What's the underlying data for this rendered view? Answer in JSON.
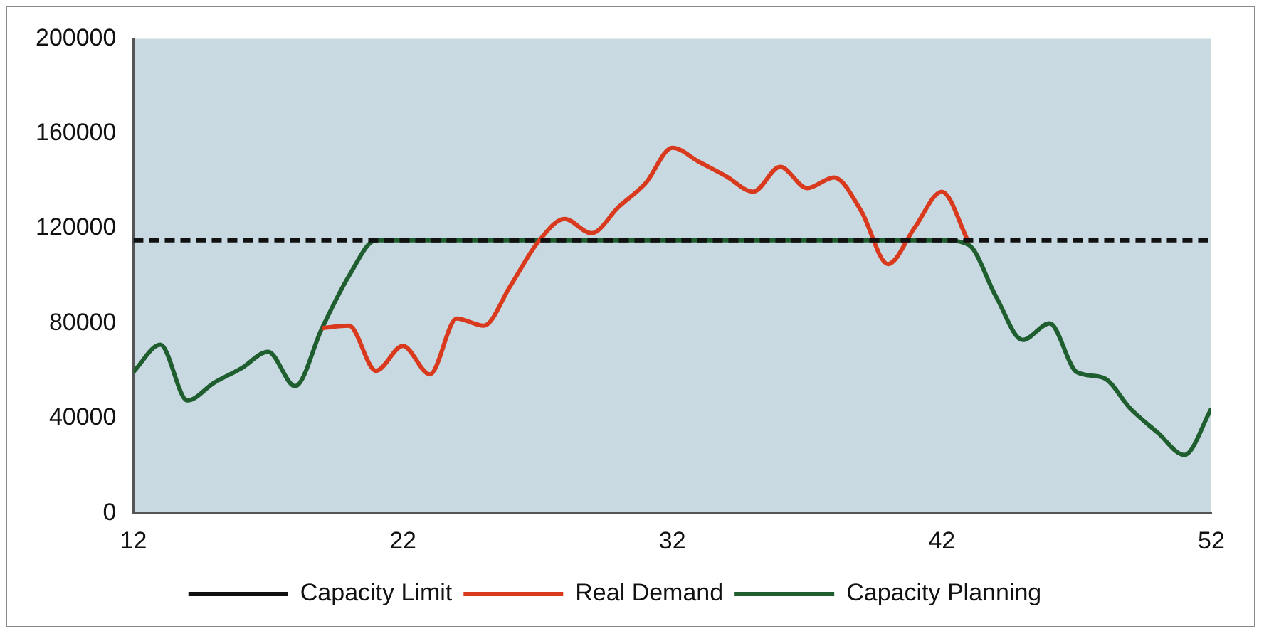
{
  "chart_data": {
    "type": "line",
    "xlim": [
      12,
      52
    ],
    "xticks": [
      12,
      22,
      32,
      42,
      52
    ],
    "ylim": [
      0,
      200000
    ],
    "yticks": [
      0,
      40000,
      80000,
      120000,
      160000,
      200000
    ],
    "grid": false,
    "legend": "bottom",
    "marker": "none",
    "series": [
      {
        "name": "Capacity Limit",
        "color": "#111111",
        "line_style": "dashed",
        "x": [
          12,
          52
        ],
        "values": [
          115000,
          115000
        ]
      },
      {
        "name": "Real Demand",
        "color": "#d93a1e",
        "line_style": "solid",
        "x": [
          19,
          20,
          21,
          22,
          23,
          24,
          25,
          26,
          27,
          28,
          29,
          30,
          31,
          32,
          33,
          34,
          35,
          36,
          37,
          38,
          39,
          40,
          41,
          42,
          43
        ],
        "values": [
          78000,
          79000,
          60000,
          70500,
          58500,
          82000,
          79000,
          96000,
          114000,
          124000,
          118000,
          129000,
          139000,
          154000,
          148000,
          142000,
          135500,
          146000,
          137000,
          141500,
          127500,
          105000,
          120500,
          135500,
          114000
        ]
      },
      {
        "name": "Capacity Planning",
        "color": "#1f5e2e",
        "line_style": "solid",
        "x": [
          12,
          13,
          14,
          15,
          16,
          17,
          18,
          19,
          20,
          21,
          22,
          24,
          26,
          28,
          30,
          32,
          34,
          36,
          38,
          40,
          42,
          43,
          44,
          45,
          46,
          47,
          48,
          49,
          50,
          51,
          52
        ],
        "values": [
          59500,
          71000,
          47500,
          55000,
          61000,
          68000,
          53500,
          78000,
          100000,
          115000,
          115000,
          115000,
          115000,
          115000,
          115000,
          115000,
          115000,
          115000,
          115000,
          115000,
          115000,
          113000,
          91500,
          73000,
          80000,
          59500,
          57000,
          44000,
          34000,
          24500,
          44000
        ]
      }
    ]
  }
}
